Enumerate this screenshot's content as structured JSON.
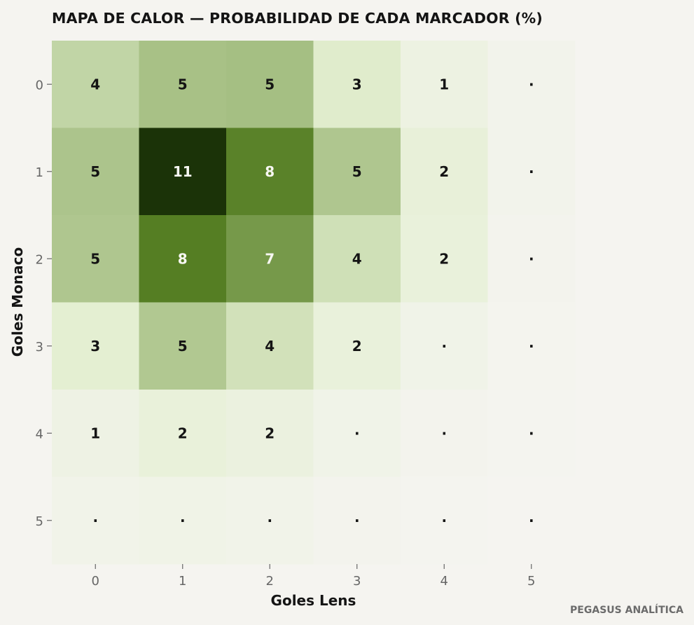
{
  "chart_data": {
    "type": "heatmap",
    "title": "MAPA DE CALOR — PROBABILIDAD DE CADA MARCADOR (%)",
    "xlabel": "Goles Lens",
    "ylabel": "Goles Monaco",
    "x_categories": [
      "0",
      "1",
      "2",
      "3",
      "4",
      "5"
    ],
    "y_categories": [
      "0",
      "1",
      "2",
      "3",
      "4",
      "5"
    ],
    "values": [
      [
        4.2,
        5.3,
        5.4,
        2.9,
        1.2,
        0.4
      ],
      [
        5.1,
        11.0,
        8.1,
        5.0,
        2.0,
        0.4
      ],
      [
        5.0,
        8.3,
        7.1,
        3.6,
        1.8,
        0.3
      ],
      [
        2.6,
        4.9,
        3.5,
        1.8,
        0.7,
        0.2
      ],
      [
        1.0,
        1.9,
        1.5,
        0.7,
        0.3,
        0.1
      ],
      [
        0.6,
        0.8,
        0.6,
        0.3,
        0.1,
        0.0
      ]
    ],
    "cell_labels": [
      [
        "4",
        "5",
        "5",
        "3",
        "1",
        "·"
      ],
      [
        "5",
        "11",
        "8",
        "5",
        "2",
        "·"
      ],
      [
        "5",
        "8",
        "7",
        "4",
        "2",
        "·"
      ],
      [
        "3",
        "5",
        "4",
        "2",
        "·",
        "·"
      ],
      [
        "1",
        "2",
        "2",
        "·",
        "·",
        "·"
      ],
      [
        "·",
        "·",
        "·",
        "·",
        "·",
        "·"
      ]
    ],
    "color_scale": [
      "#f5f4f0",
      "#e3efd0",
      "#a3bd80",
      "#567f24",
      "#1b3308"
    ],
    "grid": false
  },
  "watermark": "PEGASUS ANALÍTICA"
}
